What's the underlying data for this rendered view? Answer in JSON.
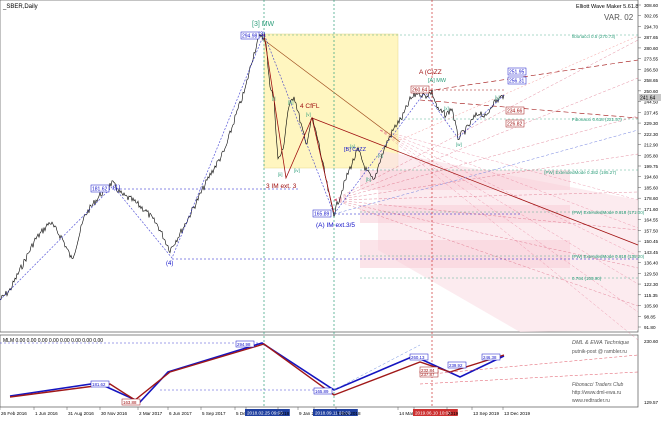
{
  "symbol_label": "_SBER,Daily",
  "indicator": {
    "name": "Elliott Wave Maker 5.61.8",
    "variant": "VAR. 02"
  },
  "price_axis": {
    "ticks": [
      "308.60",
      "302.05",
      "294.70",
      "287.65",
      "280.60",
      "273.55",
      "266.50",
      "258.65",
      "250.60",
      "244.50",
      "237.45",
      "229.30",
      "222.30",
      "212.90",
      "205.80",
      "199.75",
      "194.60",
      "185.60",
      "178.60",
      "171.60",
      "164.55",
      "157.50",
      "150.45",
      "143.45",
      "136.40",
      "129.50",
      "122.30",
      "115.35",
      "105.90",
      "98.85",
      "91.80"
    ],
    "current_price": "241.64",
    "price_min": 91.8,
    "price_max": 308.6
  },
  "wave_labels": {
    "w1": "(1)",
    "w2": "(2)",
    "w3": "(3)",
    "w4": "(4)",
    "w3_mw": "[3] MW",
    "w4_cfl": "4 CfFL",
    "w3_im_ext": "3 IM ext. 3",
    "wA_im_ext": "(A) IM ext.3/5",
    "wB_cozz": "[B] CoZZ",
    "wA_cozz": "A (C)ZZ",
    "wA_mw": "[A] MW",
    "sub": [
      "[i]",
      "[ii]",
      "[iii]",
      "[iv]",
      "[v]",
      "[a]",
      "[b]",
      "[c]",
      "[w]",
      "[x]",
      "[y]"
    ],
    "p_a": "a",
    "p_b": "b",
    "p_c": "c"
  },
  "level_labels": {
    "level_max": "294.98",
    "level_1": "260.64",
    "level_b": "181.62",
    "level_low": "165.89",
    "hi_right_1": "251.95",
    "hi_right_2": "256.31",
    "mid_1": "234.66",
    "mid_2": "226.82",
    "mid_3": "219.25",
    "fibo_top": "fibonacci 0.5 (270.73)",
    "fibo_mid": "Fibonacci 0.618 (221.57)",
    "fibo_pw1": "(PW) ExtendedMode 0.382 (195.27)",
    "fibo_pw2": "(PW) ExtendedMode 0.618 (171.00)",
    "fibo_pw3": "(PW) ExtendedMode 0.618 (135.20)",
    "fibo_low": "0.764 (105.90)",
    "fibo_ell": "[B] 0.618 (234.95)",
    "fibo_e2": "(C) 1.00 (261.20)"
  },
  "sub_window": {
    "header": "MLM 0.00 0.00 0.00 0.00 0.00 0.00 0.00 0.00",
    "axis": [
      "230.60",
      "",
      "",
      "",
      "",
      "129.57"
    ],
    "tags": [
      "294.98",
      "181.62",
      "163.88",
      "165.89",
      "260.13",
      "237.87",
      "246.38",
      "232.84",
      "239.92"
    ],
    "footer": [
      "DML & EWA Technique",
      "putnik-post @ rambler.ru",
      "Fibonacci    Traders    Club",
      "http://www.dml-ewa.ru",
      "www.redtrader.ru"
    ]
  },
  "time_axis": {
    "labels": [
      "26 Feb 2016",
      "1 Jun 2016",
      "31 Aug 2016",
      "30 Nov 2016",
      "2 Mar 2017",
      "6 Jun 2017",
      "5 Sep 2017",
      "5 Dec 2017",
      "2018.02.25 09:00",
      "2018",
      "9 Jan 2019",
      "2018.09.11 06:00",
      "7 Dec 2018",
      "14 Mar 2019",
      "2019.06.10 10:00",
      "2019",
      "13 Sep 2019",
      "13 Dec 2019"
    ]
  },
  "colors": {
    "price_line": "#000000",
    "wave_blue": "#1010c8",
    "wave_red": "#a01010",
    "fibo_green": "#2e9e7b",
    "box_yellow": "#fff6c0",
    "pink_zone": "#fbe3e8"
  }
}
